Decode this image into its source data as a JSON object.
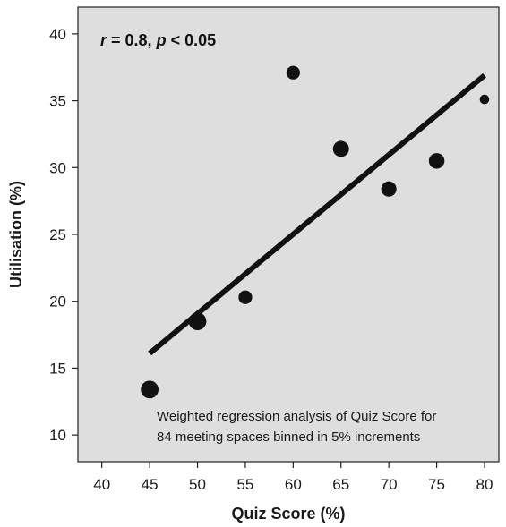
{
  "chart_data": {
    "type": "scatter",
    "xlabel": "Quiz Score (%)",
    "ylabel": "Utilisation (%)",
    "xlim": [
      37.5,
      81.5
    ],
    "ylim": [
      8,
      42
    ],
    "xticks": [
      40,
      45,
      50,
      55,
      60,
      65,
      70,
      75,
      80
    ],
    "yticks": [
      10,
      15,
      20,
      25,
      30,
      35,
      40
    ],
    "grid": false,
    "background": "#dedede",
    "points": [
      {
        "x": 45,
        "y": 13.4,
        "weight": 3
      },
      {
        "x": 50,
        "y": 18.5,
        "weight": 3
      },
      {
        "x": 55,
        "y": 20.3,
        "weight": 2
      },
      {
        "x": 60,
        "y": 37.1,
        "weight": 2
      },
      {
        "x": 65,
        "y": 31.4,
        "weight": 2.6
      },
      {
        "x": 70,
        "y": 28.4,
        "weight": 2.4
      },
      {
        "x": 75,
        "y": 30.5,
        "weight": 2.5
      },
      {
        "x": 80,
        "y": 35.1,
        "weight": 1
      }
    ],
    "regression_line": {
      "x": [
        45,
        80
      ],
      "y": [
        16.1,
        36.9
      ]
    },
    "stat": {
      "r_symbol": "r",
      "r_value": " = 0.8, ",
      "p_symbol": "p",
      "p_value": " < 0.05"
    },
    "annotation": [
      "Weighted regression analysis of Quiz Score for",
      "84 meeting spaces binned in 5% increments"
    ]
  }
}
